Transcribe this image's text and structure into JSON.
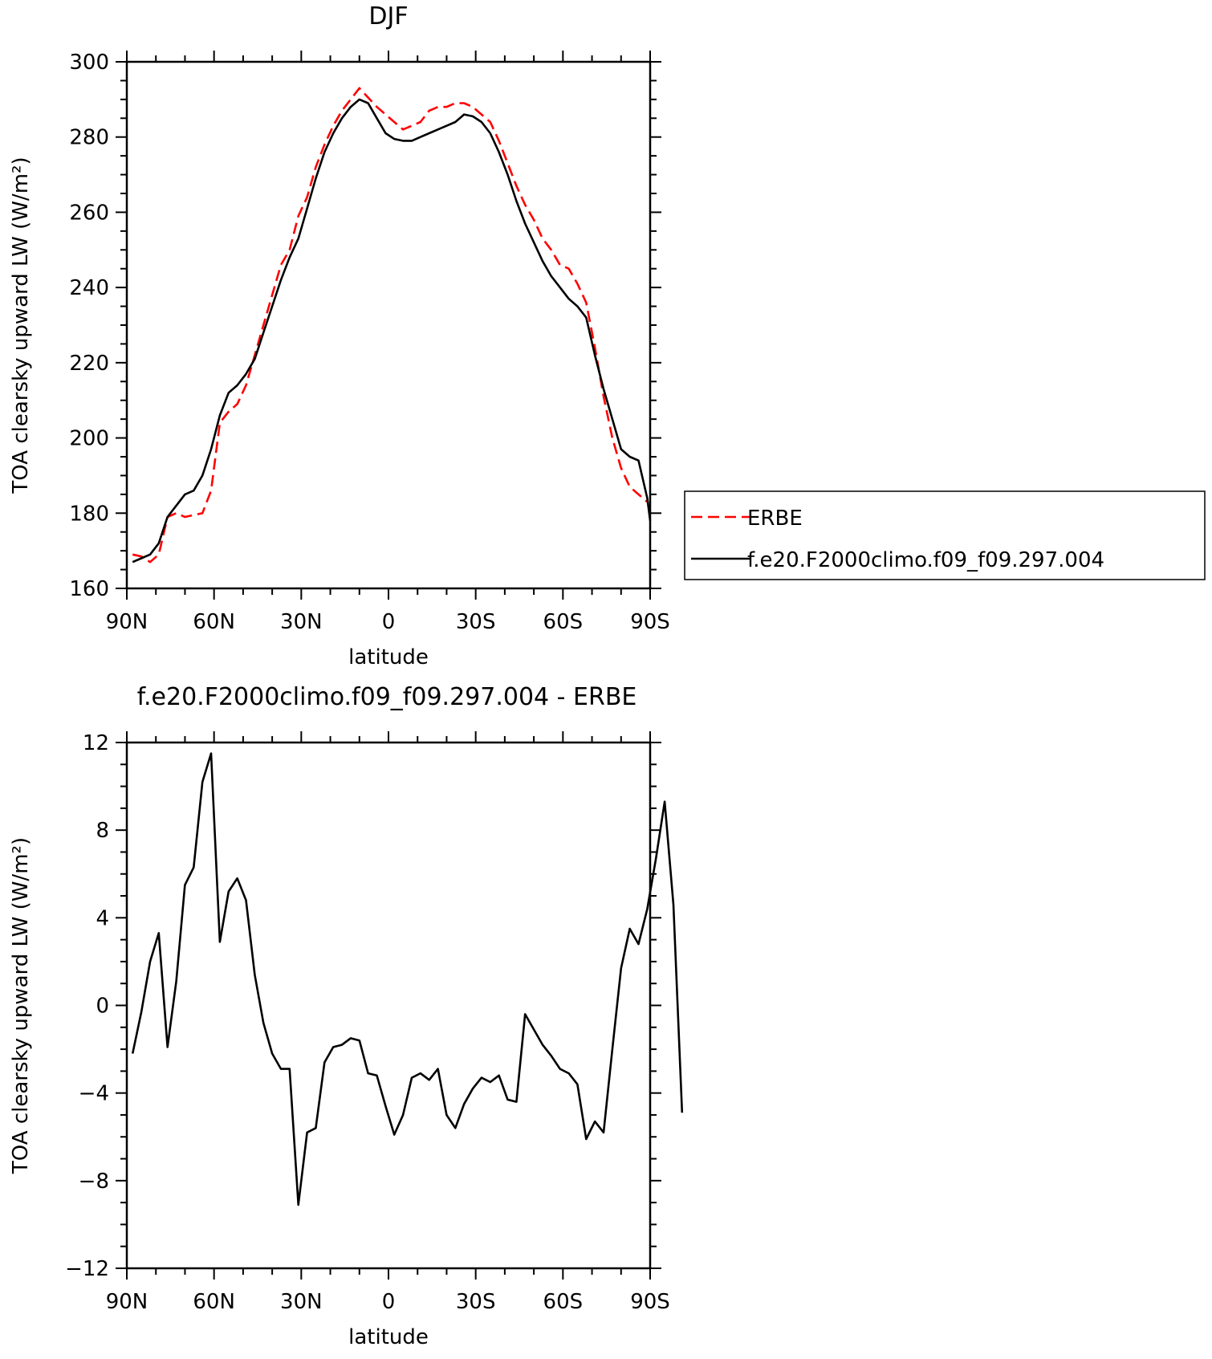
{
  "chart_data": [
    {
      "type": "line",
      "title": "DJF",
      "xlabel": "latitude",
      "ylabel": "TOA clearsky upward LW (W/m²)",
      "ylim": [
        160,
        300
      ],
      "xlim": [
        90,
        -90
      ],
      "x_ticks": [
        90,
        60,
        30,
        0,
        -30,
        -60,
        -90
      ],
      "x_tick_labels": [
        "90N",
        "60N",
        "30N",
        "0",
        "30S",
        "60S",
        "90S"
      ],
      "y_ticks": [
        160,
        180,
        200,
        220,
        240,
        260,
        280,
        300
      ],
      "y_tick_labels": [
        "160",
        "180",
        "200",
        "220",
        "240",
        "260",
        "280",
        "300"
      ],
      "grid": false,
      "legend": {
        "placement": "outside-right"
      },
      "series": [
        {
          "name": "ERBE",
          "color": "#ff0000",
          "dash": "dashed",
          "points": [
            [
              88,
              169
            ],
            [
              85,
              168.5
            ],
            [
              82,
              167
            ],
            [
              79,
              169
            ],
            [
              76,
              179
            ],
            [
              73,
              180
            ],
            [
              70,
              179
            ],
            [
              67,
              179.5
            ],
            [
              64,
              180
            ],
            [
              61,
              186
            ],
            [
              58,
              204
            ],
            [
              55,
              207
            ],
            [
              52,
              209
            ],
            [
              49,
              214
            ],
            [
              46,
              222
            ],
            [
              43,
              230
            ],
            [
              40,
              238
            ],
            [
              37,
              246
            ],
            [
              34,
              250
            ],
            [
              31,
              259
            ],
            [
              28,
              264
            ],
            [
              25,
              272
            ],
            [
              22,
              278
            ],
            [
              19,
              283
            ],
            [
              16,
              287
            ],
            [
              13,
              290
            ],
            [
              10,
              293
            ],
            [
              7,
              290.5
            ],
            [
              4,
              288
            ],
            [
              1,
              286
            ],
            [
              -2,
              284
            ],
            [
              -5,
              282
            ],
            [
              -8,
              283
            ],
            [
              -11,
              284
            ],
            [
              -14,
              287
            ],
            [
              -17,
              288
            ],
            [
              -20,
              288
            ],
            [
              -23,
              289
            ],
            [
              -26,
              289
            ],
            [
              -29,
              288
            ],
            [
              -32,
              286
            ],
            [
              -35,
              284
            ],
            [
              -38,
              279
            ],
            [
              -41,
              273
            ],
            [
              -44,
              267
            ],
            [
              -47,
              262
            ],
            [
              -50,
              258
            ],
            [
              -53,
              253
            ],
            [
              -56,
              250
            ],
            [
              -59,
              246
            ],
            [
              -62,
              245
            ],
            [
              -65,
              241
            ],
            [
              -68,
              236
            ],
            [
              -71,
              224
            ],
            [
              -74,
              211
            ],
            [
              -77,
              200
            ],
            [
              -80,
              192
            ],
            [
              -83,
              187
            ],
            [
              -86,
              185
            ],
            [
              -89,
              183
            ]
          ]
        },
        {
          "name": "f.e20.F2000climo.f09_f09.297.004",
          "color": "#000000",
          "dash": "solid",
          "points": [
            [
              88,
              167
            ],
            [
              85,
              168
            ],
            [
              82,
              169
            ],
            [
              79,
              172
            ],
            [
              76,
              179
            ],
            [
              73,
              182
            ],
            [
              70,
              185
            ],
            [
              67,
              186
            ],
            [
              64,
              190
            ],
            [
              61,
              197
            ],
            [
              58,
              206
            ],
            [
              55,
              212
            ],
            [
              52,
              214
            ],
            [
              49,
              217
            ],
            [
              46,
              221
            ],
            [
              43,
              228
            ],
            [
              40,
              235
            ],
            [
              37,
              242
            ],
            [
              34,
              248
            ],
            [
              31,
              253
            ],
            [
              28,
              261
            ],
            [
              25,
              269
            ],
            [
              22,
              276
            ],
            [
              19,
              281
            ],
            [
              16,
              285
            ],
            [
              13,
              288
            ],
            [
              10,
              290
            ],
            [
              7,
              289
            ],
            [
              4,
              285
            ],
            [
              1,
              281
            ],
            [
              -2,
              279.5
            ],
            [
              -5,
              279
            ],
            [
              -8,
              279
            ],
            [
              -11,
              280
            ],
            [
              -14,
              281
            ],
            [
              -17,
              282
            ],
            [
              -20,
              283
            ],
            [
              -23,
              284
            ],
            [
              -26,
              286
            ],
            [
              -29,
              285.5
            ],
            [
              -32,
              284
            ],
            [
              -35,
              281
            ],
            [
              -38,
              276
            ],
            [
              -41,
              270
            ],
            [
              -44,
              263
            ],
            [
              -47,
              257
            ],
            [
              -50,
              252
            ],
            [
              -53,
              247
            ],
            [
              -56,
              243
            ],
            [
              -59,
              240
            ],
            [
              -62,
              237
            ],
            [
              -65,
              235
            ],
            [
              -68,
              232
            ],
            [
              -71,
              222
            ],
            [
              -74,
              213
            ],
            [
              -77,
              205
            ],
            [
              -80,
              197
            ],
            [
              -83,
              195
            ],
            [
              -86,
              194
            ],
            [
              -89,
              184
            ],
            [
              -90,
              178
            ]
          ]
        }
      ]
    },
    {
      "type": "line",
      "title": "f.e20.F2000climo.f09_f09.297.004 - ERBE",
      "xlabel": "latitude",
      "ylabel": "TOA clearsky upward LW (W/m²)",
      "ylim": [
        -12,
        12
      ],
      "xlim": [
        90,
        -90
      ],
      "x_ticks": [
        90,
        60,
        30,
        0,
        -30,
        -60,
        -90
      ],
      "x_tick_labels": [
        "90N",
        "60N",
        "30N",
        "0",
        "30S",
        "60S",
        "90S"
      ],
      "y_ticks": [
        -12,
        -8,
        -4,
        0,
        4,
        8,
        12
      ],
      "y_tick_labels": [
        "−12",
        "−8",
        "−4",
        "0",
        "4",
        "8",
        "12"
      ],
      "grid": false,
      "series": [
        {
          "color": "#000000",
          "dash": "solid",
          "points": [
            [
              88,
              -2.2
            ],
            [
              85,
              -0.3
            ],
            [
              82,
              2
            ],
            [
              79,
              3.3
            ],
            [
              76,
              -1.9
            ],
            [
              73,
              1.1
            ],
            [
              70,
              5.5
            ],
            [
              67,
              6.3
            ],
            [
              64,
              10.2
            ],
            [
              61,
              11.5
            ],
            [
              58,
              2.9
            ],
            [
              55,
              5.2
            ],
            [
              52,
              5.8
            ],
            [
              49,
              4.8
            ],
            [
              46,
              1.4
            ],
            [
              43,
              -0.8
            ],
            [
              40,
              -2.2
            ],
            [
              37,
              -2.9
            ],
            [
              34,
              -2.9
            ],
            [
              31,
              -9.1
            ],
            [
              28,
              -5.8
            ],
            [
              25,
              -5.6
            ],
            [
              22,
              -2.6
            ],
            [
              19,
              -1.9
            ],
            [
              16,
              -1.8
            ],
            [
              13,
              -1.5
            ],
            [
              10,
              -1.6
            ],
            [
              7,
              -3.1
            ],
            [
              4,
              -3.2
            ],
            [
              1,
              -4.6
            ],
            [
              -2,
              -5.9
            ],
            [
              -5,
              -5
            ],
            [
              -8,
              -3.3
            ],
            [
              -11,
              -3.1
            ],
            [
              -14,
              -3.4
            ],
            [
              -17,
              -2.9
            ],
            [
              -20,
              -5
            ],
            [
              -23,
              -5.6
            ],
            [
              -26,
              -4.5
            ],
            [
              -29,
              -3.8
            ],
            [
              -32,
              -3.3
            ],
            [
              -35,
              -3.5
            ],
            [
              -38,
              -3.2
            ],
            [
              -41,
              -4.3
            ],
            [
              -44,
              -4.4
            ],
            [
              -47,
              -0.4
            ],
            [
              -50,
              -1.1
            ],
            [
              -53,
              -1.8
            ],
            [
              -56,
              -2.3
            ],
            [
              -59,
              -2.9
            ],
            [
              -62,
              -3.1
            ],
            [
              -65,
              -3.6
            ],
            [
              -68,
              -6.1
            ],
            [
              -71,
              -5.3
            ],
            [
              -74,
              -5.8
            ],
            [
              -77,
              -2
            ],
            [
              -80,
              1.7
            ],
            [
              -83,
              3.5
            ],
            [
              -86,
              2.8
            ],
            [
              -89,
              4.4
            ],
            [
              -92,
              6.7
            ],
            [
              -95,
              9.3
            ],
            [
              -98,
              4.6
            ],
            [
              -101,
              -4.9
            ]
          ]
        }
      ]
    }
  ]
}
